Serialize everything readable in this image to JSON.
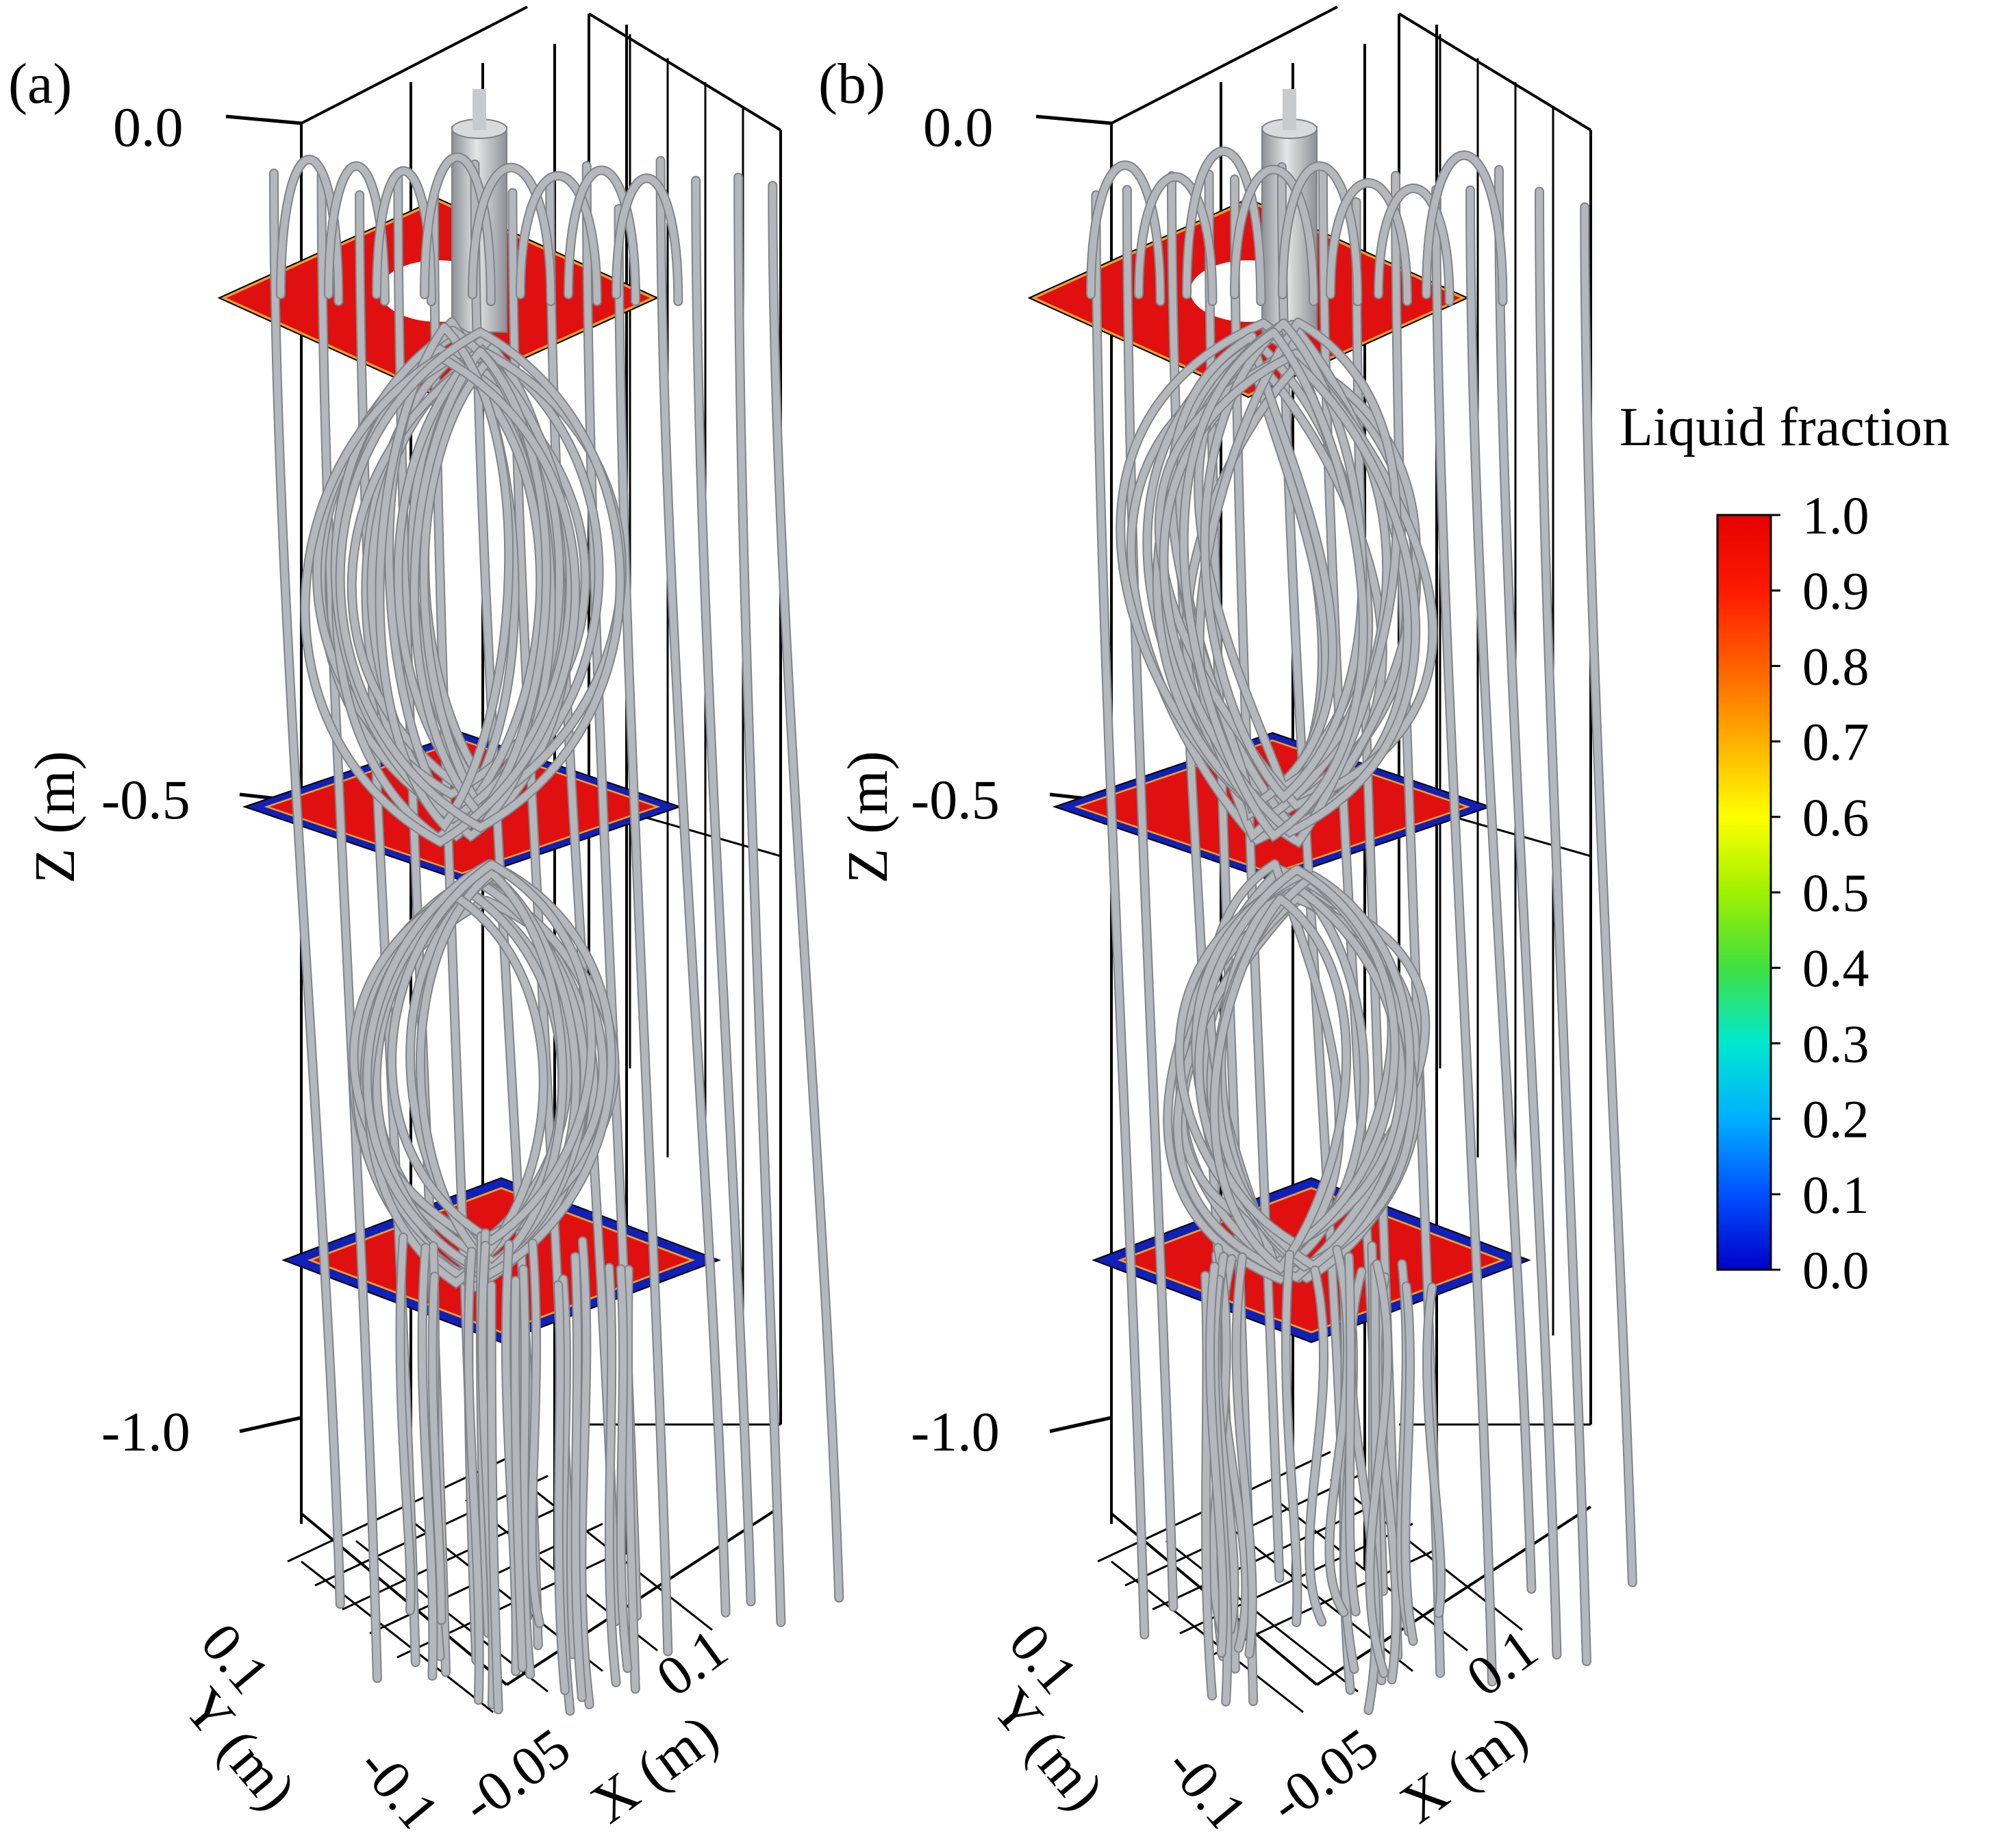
{
  "panels": [
    {
      "label": "(a)",
      "z_axis": {
        "title": "Z (m)",
        "ticks": [
          "0.0",
          "-0.5",
          "-1.0"
        ]
      },
      "y_axis": {
        "title": "Y (m)",
        "ticks": [
          "0.1",
          "-0.1"
        ]
      },
      "x_axis": {
        "title": "X (m)",
        "ticks": [
          "-0.05",
          "0.1"
        ]
      }
    },
    {
      "label": "(b)",
      "z_axis": {
        "title": "Z (m)",
        "ticks": [
          "0.0",
          "-0.5",
          "-1.0"
        ]
      },
      "y_axis": {
        "title": "Y (m)",
        "ticks": [
          "0.1",
          "-0.1"
        ]
      },
      "x_axis": {
        "title": "X (m)",
        "ticks": [
          "-0.05",
          "0.1"
        ]
      }
    }
  ],
  "colorbar": {
    "title": "Liquid fraction",
    "ticks": [
      "1.0",
      "0.9",
      "0.8",
      "0.7",
      "0.6",
      "0.5",
      "0.4",
      "0.3",
      "0.2",
      "0.1",
      "0.0"
    ],
    "colormap": [
      "#0000c8",
      "#0050ff",
      "#00b0ff",
      "#00e8d0",
      "#40e040",
      "#d0f000",
      "#ffff00",
      "#ffb000",
      "#ff6000",
      "#ff1a00",
      "#e60000"
    ]
  },
  "colors": {
    "liquid": "#e01010",
    "solid": "#1020b8",
    "streamline": "#b4b8bc",
    "axis": "#000000"
  }
}
